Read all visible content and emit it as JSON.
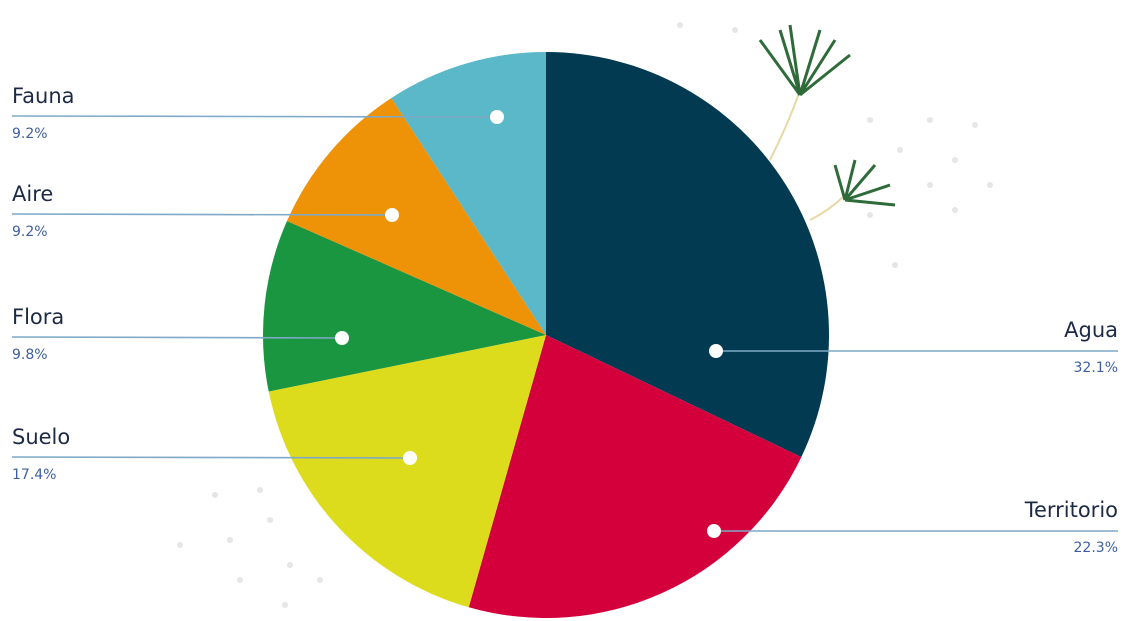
{
  "chart_data": {
    "type": "pie",
    "categories": [
      "Agua",
      "Territorio",
      "Suelo",
      "Flora",
      "Aire",
      "Fauna"
    ],
    "values": [
      32.1,
      22.3,
      17.4,
      9.8,
      9.2,
      9.2
    ],
    "value_labels": [
      "32.1%",
      "22.3%",
      "17.4%",
      "9.8%",
      "9.2%",
      "9.2%"
    ],
    "colors": [
      "#023a52",
      "#d4003c",
      "#dcdc1c",
      "#1a9540",
      "#ee9208",
      "#5ab8c8"
    ]
  }
}
